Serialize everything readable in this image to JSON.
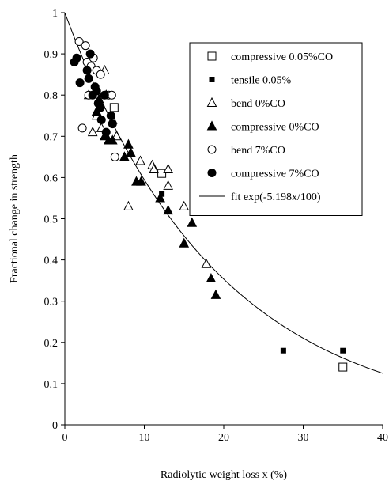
{
  "chart_data": {
    "type": "scatter",
    "title": "",
    "xlabel": "Radiolytic weight loss x (%)",
    "ylabel": "Fractional change in strength",
    "xlim": [
      0,
      40
    ],
    "ylim": [
      0,
      1
    ],
    "x_ticks": [
      0,
      10,
      20,
      30,
      40
    ],
    "y_ticks": [
      0,
      0.1,
      0.2,
      0.3,
      0.4,
      0.5,
      0.6,
      0.7,
      0.8,
      0.9,
      1
    ],
    "grid": false,
    "legend_position": "top-right",
    "series": [
      {
        "name": "compressive 0.05%CO",
        "marker": "open-square",
        "points": [
          [
            6.2,
            0.77
          ],
          [
            12.2,
            0.61
          ],
          [
            35.0,
            0.14
          ]
        ]
      },
      {
        "name": "tensile 0.05%",
        "marker": "filled-square-small",
        "points": [
          [
            12.2,
            0.56
          ],
          [
            27.5,
            0.18
          ],
          [
            35.0,
            0.18
          ]
        ]
      },
      {
        "name": "bend 0%CO",
        "marker": "open-triangle",
        "points": [
          [
            3.0,
            0.8
          ],
          [
            3.5,
            0.71
          ],
          [
            4.0,
            0.75
          ],
          [
            5.0,
            0.86
          ],
          [
            5.2,
            0.8
          ],
          [
            4.6,
            0.72
          ],
          [
            6.0,
            0.74
          ],
          [
            6.5,
            0.7
          ],
          [
            8.0,
            0.53
          ],
          [
            9.5,
            0.64
          ],
          [
            11.0,
            0.63
          ],
          [
            11.2,
            0.62
          ],
          [
            13.0,
            0.62
          ],
          [
            13.0,
            0.58
          ],
          [
            15.0,
            0.53
          ],
          [
            17.8,
            0.39
          ]
        ]
      },
      {
        "name": "compressive 0%CO",
        "marker": "filled-triangle",
        "points": [
          [
            4.0,
            0.76
          ],
          [
            4.3,
            0.79
          ],
          [
            5.0,
            0.7
          ],
          [
            5.5,
            0.69
          ],
          [
            6.0,
            0.69
          ],
          [
            7.5,
            0.65
          ],
          [
            8.0,
            0.68
          ],
          [
            8.3,
            0.66
          ],
          [
            9.0,
            0.59
          ],
          [
            9.6,
            0.59
          ],
          [
            12.0,
            0.55
          ],
          [
            13.0,
            0.52
          ],
          [
            15.0,
            0.44
          ],
          [
            16.0,
            0.49
          ],
          [
            18.4,
            0.355
          ],
          [
            19.0,
            0.315
          ]
        ]
      },
      {
        "name": "bend 7%CO",
        "marker": "open-circle",
        "points": [
          [
            1.8,
            0.93
          ],
          [
            2.2,
            0.72
          ],
          [
            2.6,
            0.92
          ],
          [
            2.8,
            0.88
          ],
          [
            3.0,
            0.8
          ],
          [
            3.3,
            0.87
          ],
          [
            3.6,
            0.89
          ],
          [
            4.0,
            0.86
          ],
          [
            4.5,
            0.85
          ],
          [
            5.5,
            0.8
          ],
          [
            5.9,
            0.8
          ],
          [
            6.3,
            0.65
          ]
        ]
      },
      {
        "name": "compressive 7%CO",
        "marker": "filled-circle",
        "points": [
          [
            1.2,
            0.88
          ],
          [
            1.5,
            0.89
          ],
          [
            1.9,
            0.83
          ],
          [
            2.8,
            0.86
          ],
          [
            3.0,
            0.84
          ],
          [
            3.2,
            0.9
          ],
          [
            3.5,
            0.8
          ],
          [
            3.8,
            0.82
          ],
          [
            4.0,
            0.81
          ],
          [
            4.2,
            0.78
          ],
          [
            4.5,
            0.77
          ],
          [
            4.6,
            0.74
          ],
          [
            5.0,
            0.8
          ],
          [
            5.2,
            0.71
          ],
          [
            5.8,
            0.75
          ],
          [
            6.0,
            0.73
          ]
        ]
      },
      {
        "name": "fit exp(-5.198x/100)",
        "marker": "line",
        "function": "exp(-5.198x/100)",
        "coefficient": -5.198
      }
    ]
  }
}
